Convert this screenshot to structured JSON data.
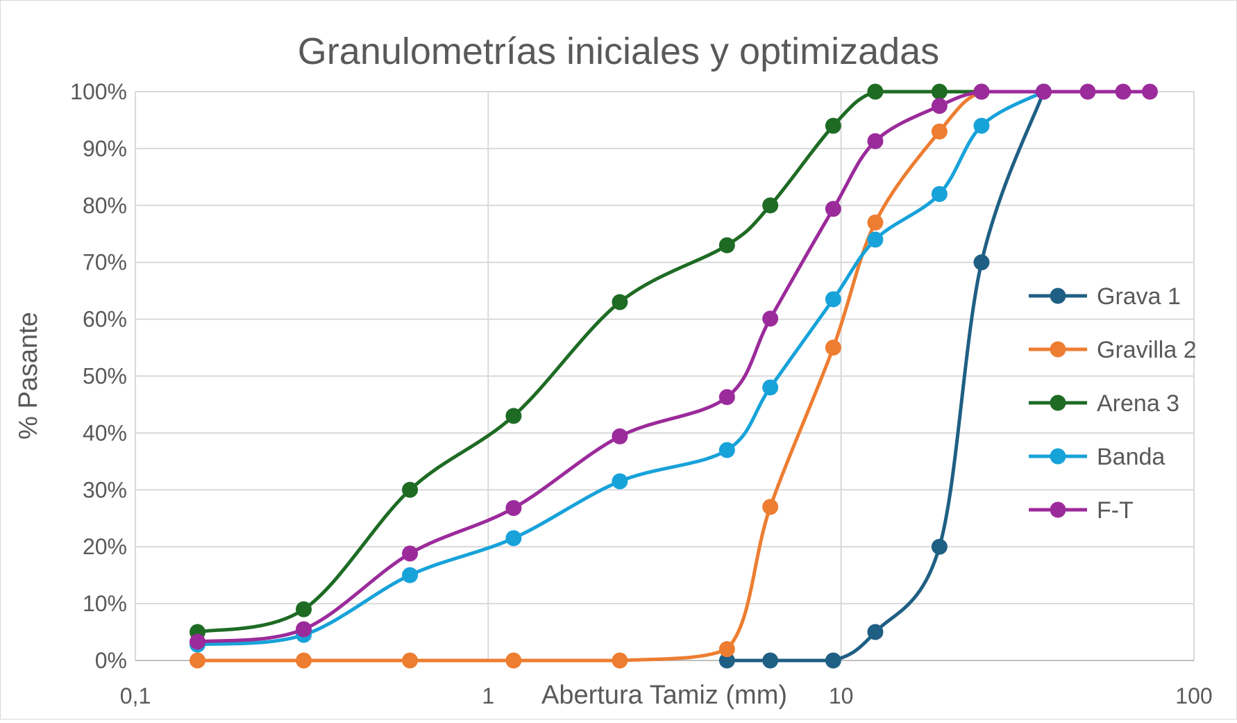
{
  "chart_data": {
    "type": "line",
    "title": "Granulometrías iniciales y optimizadas",
    "xlabel": "Abertura Tamiz (mm)",
    "ylabel": "% Pasante",
    "xscale": "log",
    "xlim": [
      0.1,
      100
    ],
    "ylim": [
      0,
      100
    ],
    "grid": true,
    "legend_position": "right",
    "x_ticks": [
      {
        "value": 0.1,
        "label": "0,1"
      },
      {
        "value": 1,
        "label": "1"
      },
      {
        "value": 10,
        "label": "10"
      },
      {
        "value": 100,
        "label": "100"
      }
    ],
    "y_ticks": [
      {
        "value": 0,
        "label": "0%"
      },
      {
        "value": 10,
        "label": "10%"
      },
      {
        "value": 20,
        "label": "20%"
      },
      {
        "value": 30,
        "label": "30%"
      },
      {
        "value": 40,
        "label": "40%"
      },
      {
        "value": 50,
        "label": "50%"
      },
      {
        "value": 60,
        "label": "60%"
      },
      {
        "value": 70,
        "label": "70%"
      },
      {
        "value": 80,
        "label": "80%"
      },
      {
        "value": 90,
        "label": "90%"
      },
      {
        "value": 100,
        "label": "100%"
      }
    ],
    "series": [
      {
        "name": "Grava 1",
        "color": "#1f5f84",
        "points": [
          [
            4.75,
            0
          ],
          [
            6.3,
            0
          ],
          [
            9.5,
            0
          ],
          [
            12.5,
            5
          ],
          [
            19,
            20
          ],
          [
            25,
            70
          ],
          [
            37.5,
            100
          ]
        ]
      },
      {
        "name": "Gravilla 2",
        "color": "#ed7d31",
        "points": [
          [
            0.15,
            0
          ],
          [
            0.3,
            0
          ],
          [
            0.6,
            0
          ],
          [
            1.18,
            0
          ],
          [
            2.36,
            0
          ],
          [
            4.75,
            2
          ],
          [
            6.3,
            27
          ],
          [
            9.5,
            55
          ],
          [
            12.5,
            77
          ],
          [
            19,
            93
          ],
          [
            25,
            100
          ],
          [
            37.5,
            100
          ]
        ]
      },
      {
        "name": "Arena 3",
        "color": "#1e6b24",
        "points": [
          [
            0.15,
            5
          ],
          [
            0.3,
            9
          ],
          [
            0.6,
            30
          ],
          [
            1.18,
            43
          ],
          [
            2.36,
            63
          ],
          [
            4.75,
            73
          ],
          [
            6.3,
            80
          ],
          [
            9.5,
            94
          ],
          [
            12.5,
            100
          ],
          [
            19,
            100
          ],
          [
            25,
            100
          ],
          [
            37.5,
            100
          ]
        ]
      },
      {
        "name": "Banda",
        "color": "#17a2d9",
        "points": [
          [
            0.15,
            2.8
          ],
          [
            0.3,
            4.5
          ],
          [
            0.6,
            15
          ],
          [
            1.18,
            21.5
          ],
          [
            2.36,
            31.5
          ],
          [
            4.75,
            37
          ],
          [
            6.3,
            48
          ],
          [
            9.5,
            63.5
          ],
          [
            12.5,
            74
          ],
          [
            19,
            82
          ],
          [
            25,
            94
          ],
          [
            37.5,
            100
          ]
        ]
      },
      {
        "name": "F-T",
        "color": "#9b2b9b",
        "points": [
          [
            0.15,
            3.3
          ],
          [
            0.3,
            5.5
          ],
          [
            0.6,
            18.8
          ],
          [
            1.18,
            26.8
          ],
          [
            2.36,
            39.4
          ],
          [
            4.75,
            46.3
          ],
          [
            6.3,
            60.1
          ],
          [
            9.5,
            79.4
          ],
          [
            12.5,
            91.3
          ],
          [
            19,
            97.5
          ],
          [
            25,
            100
          ],
          [
            37.5,
            100
          ],
          [
            50,
            100
          ],
          [
            63,
            100
          ],
          [
            75,
            100
          ]
        ]
      }
    ]
  }
}
